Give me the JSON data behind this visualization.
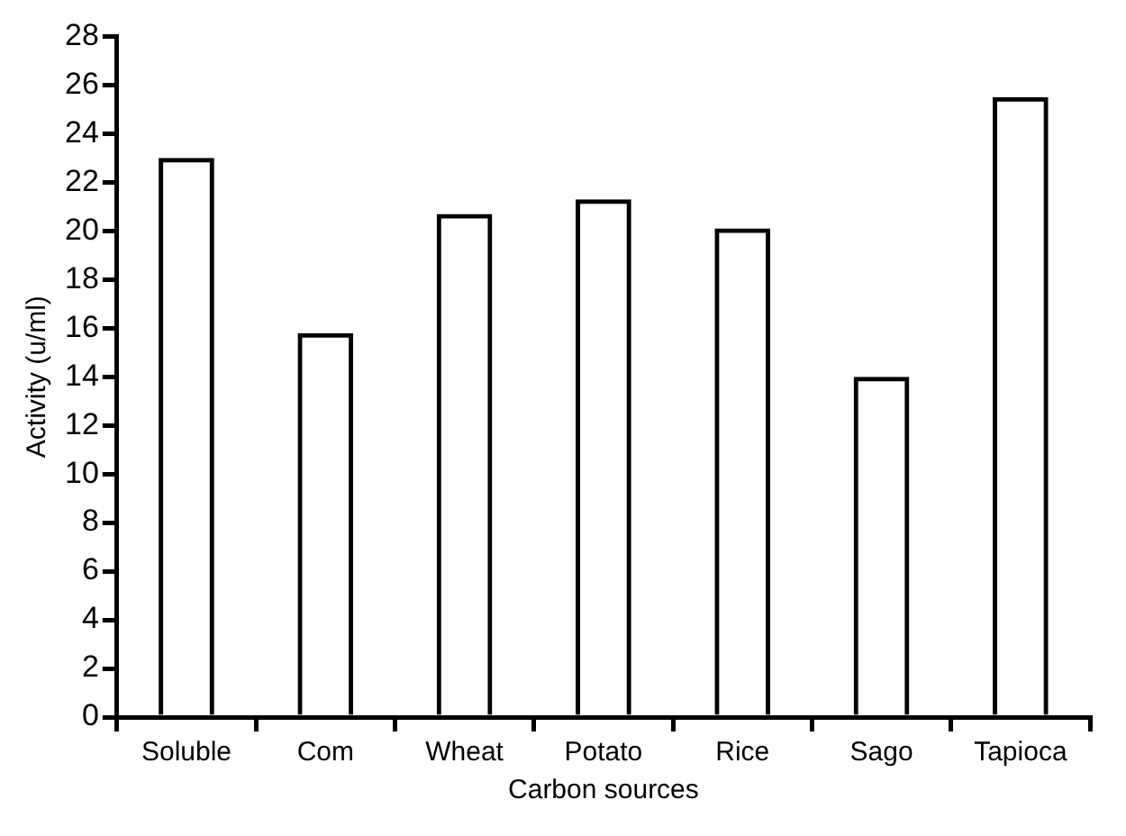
{
  "chart_data": {
    "type": "bar",
    "xlabel": "Carbon sources",
    "ylabel": "Activity (u/ml)",
    "categories": [
      "Soluble",
      "Com",
      "Wheat",
      "Potato",
      "Rice",
      "Sago",
      "Tapioca"
    ],
    "values": [
      23.0,
      15.8,
      20.7,
      21.3,
      20.1,
      14.0,
      25.5
    ],
    "color": "#000000",
    "ylim": [
      0,
      28
    ],
    "yticks": [
      0,
      2,
      4,
      6,
      8,
      10,
      12,
      14,
      16,
      18,
      20,
      22,
      24,
      26,
      28
    ],
    "grid": false
  }
}
